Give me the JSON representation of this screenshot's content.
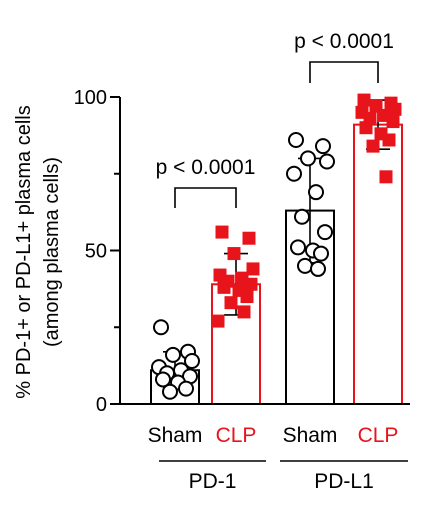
{
  "chart_data": {
    "type": "bar",
    "ylabel_line1": "% PD-1+ or PD-L1+ plasma cells",
    "ylabel_line2": "(among plasma cells)",
    "ylim": [
      0,
      100
    ],
    "yticks": [
      0,
      50,
      100
    ],
    "yminor": [
      25,
      75
    ],
    "categories": [
      "Sham",
      "CLP",
      "Sham",
      "CLP"
    ],
    "groups": [
      "PD-1",
      "PD-L1"
    ],
    "colors": {
      "Sham": "#000000",
      "CLP": "#e8141b"
    },
    "bars": [
      {
        "group": "PD-1",
        "label": "Sham",
        "mean": 11,
        "sd": 6,
        "points": [
          25,
          17,
          16,
          14,
          12,
          11,
          10,
          9,
          8,
          7,
          5,
          4
        ]
      },
      {
        "group": "PD-1",
        "label": "CLP",
        "mean": 39,
        "sd": 10,
        "points": [
          56,
          54,
          49,
          44,
          42,
          41,
          40,
          39,
          38,
          37,
          35,
          33,
          30,
          27
        ]
      },
      {
        "group": "PD-L1",
        "label": "Sham",
        "mean": 63,
        "sd": 17,
        "points": [
          86,
          84,
          80,
          79,
          75,
          69,
          61,
          56,
          51,
          50,
          49,
          45,
          44
        ]
      },
      {
        "group": "PD-L1",
        "label": "CLP",
        "mean": 91,
        "sd": 8,
        "points": [
          99,
          98,
          97,
          96,
          95,
          94,
          93,
          92,
          90,
          88,
          86,
          84,
          74
        ]
      }
    ],
    "annotations": [
      {
        "text": "p < 0.0001",
        "bars": [
          0,
          1
        ]
      },
      {
        "text": "p < 0.0001",
        "bars": [
          2,
          3
        ]
      }
    ]
  }
}
